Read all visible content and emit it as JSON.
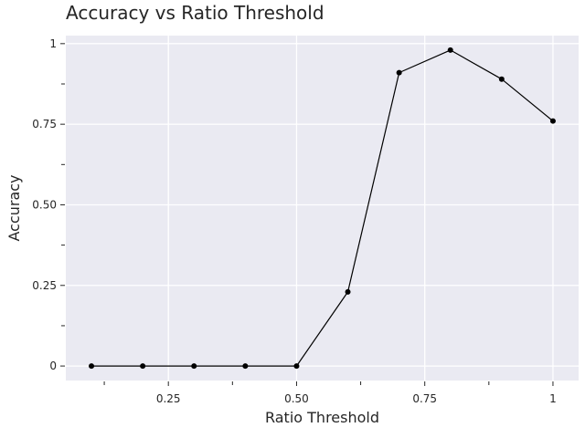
{
  "chart_data": {
    "type": "line",
    "title": "Accuracy vs Ratio Threshold",
    "xlabel": "Ratio Threshold",
    "ylabel": "Accuracy",
    "xlim": [
      0.05,
      1.05
    ],
    "ylim": [
      -0.045,
      1.025
    ],
    "x_ticks": [
      {
        "value": 0.25,
        "label": "0.25"
      },
      {
        "value": 0.5,
        "label": "0.50"
      },
      {
        "value": 0.75,
        "label": "0.75"
      },
      {
        "value": 1.0,
        "label": "1"
      }
    ],
    "x_minor_ticks": [
      0.125,
      0.375,
      0.625,
      0.875
    ],
    "y_ticks": [
      {
        "value": 0,
        "label": "0"
      },
      {
        "value": 0.25,
        "label": "0.25"
      },
      {
        "value": 0.5,
        "label": "0.50"
      },
      {
        "value": 0.75,
        "label": "0.75"
      },
      {
        "value": 1.0,
        "label": "1"
      }
    ],
    "y_minor_ticks": [
      0.125,
      0.375,
      0.625,
      0.875
    ],
    "grid": true,
    "series": [
      {
        "x": [
          0.1,
          0.2,
          0.3,
          0.4,
          0.5,
          0.6,
          0.7,
          0.8,
          0.9,
          1.0
        ],
        "y": [
          0,
          0,
          0,
          0,
          0,
          0.23,
          0.91,
          0.98,
          0.89,
          0.76
        ]
      }
    ],
    "colors": {
      "panel": "#eaeaf2",
      "grid": "#ffffff",
      "line": "#000000",
      "marker": "#000000",
      "text": "#262626"
    }
  }
}
